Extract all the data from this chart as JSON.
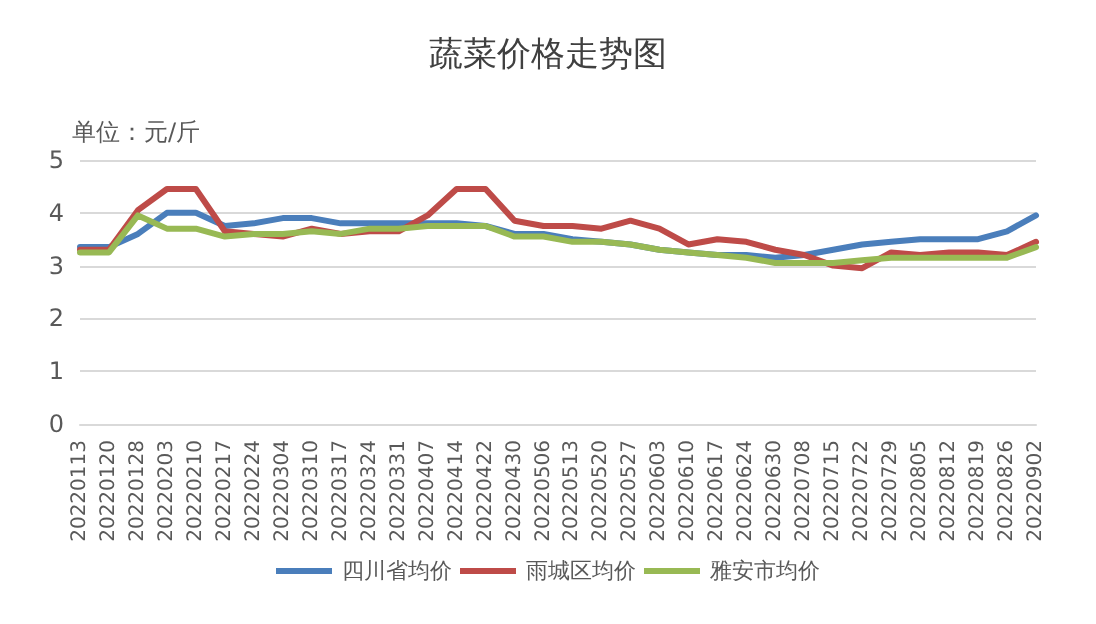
{
  "chart_data": {
    "type": "line",
    "title": "蔬菜价格走势图",
    "annotations": [
      "单位：元/斤"
    ],
    "categories": [
      "20220113",
      "20220120",
      "20220128",
      "20220203",
      "20220210",
      "20220217",
      "20220224",
      "20220304",
      "20220310",
      "20220317",
      "20220324",
      "20220331",
      "20220407",
      "20220414",
      "20220422",
      "20220430",
      "20220506",
      "20220513",
      "20220520",
      "20220527",
      "20220603",
      "20220610",
      "20220617",
      "20220624",
      "20220630",
      "20220708",
      "20220715",
      "20220722",
      "20220729",
      "20220805",
      "20220812",
      "20220819",
      "20220826",
      "20220902"
    ],
    "series": [
      {
        "name": "四川省均价",
        "color": "#4a7ebb",
        "values": [
          3.35,
          3.35,
          3.6,
          4.0,
          4.0,
          3.75,
          3.8,
          3.9,
          3.9,
          3.8,
          3.8,
          3.8,
          3.8,
          3.8,
          3.75,
          3.6,
          3.6,
          3.5,
          3.45,
          3.4,
          3.3,
          3.25,
          3.2,
          3.2,
          3.15,
          3.2,
          3.3,
          3.4,
          3.45,
          3.5,
          3.5,
          3.5,
          3.65,
          3.95
        ]
      },
      {
        "name": "雨城区均价",
        "color": "#be4b48",
        "values": [
          3.3,
          3.3,
          4.05,
          4.45,
          4.45,
          3.65,
          3.6,
          3.55,
          3.7,
          3.6,
          3.65,
          3.65,
          3.95,
          4.45,
          4.45,
          3.85,
          3.75,
          3.75,
          3.7,
          3.85,
          3.7,
          3.4,
          3.5,
          3.45,
          3.3,
          3.2,
          3.0,
          2.95,
          3.25,
          3.2,
          3.25,
          3.25,
          3.2,
          3.45
        ]
      },
      {
        "name": "雅安市均价",
        "color": "#98b954",
        "values": [
          3.25,
          3.25,
          3.95,
          3.7,
          3.7,
          3.55,
          3.6,
          3.6,
          3.65,
          3.6,
          3.7,
          3.7,
          3.75,
          3.75,
          3.75,
          3.55,
          3.55,
          3.45,
          3.45,
          3.4,
          3.3,
          3.25,
          3.2,
          3.15,
          3.05,
          3.05,
          3.05,
          3.1,
          3.15,
          3.15,
          3.15,
          3.15,
          3.15,
          3.35
        ]
      }
    ],
    "ylim": [
      0,
      5
    ],
    "yticks": [
      0,
      1,
      2,
      3,
      4,
      5
    ],
    "grid": "y",
    "legend": "bottom",
    "marker": "none",
    "line_style": "solid"
  }
}
